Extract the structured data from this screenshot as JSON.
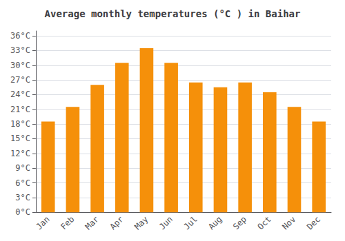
{
  "chart_data": {
    "type": "bar",
    "title": "Average monthly temperatures (°C ) in Baihar",
    "categories": [
      "Jan",
      "Feb",
      "Mar",
      "Apr",
      "May",
      "Jun",
      "Jul",
      "Aug",
      "Sep",
      "Oct",
      "Nov",
      "Dec"
    ],
    "values": [
      18.5,
      21.5,
      26.0,
      30.5,
      33.5,
      30.5,
      26.5,
      25.5,
      26.5,
      24.5,
      21.5,
      18.5
    ],
    "color": "#F5900A",
    "ylim": [
      0,
      37
    ],
    "yticks": [
      {
        "value": 0,
        "label": "0°C"
      },
      {
        "value": 3,
        "label": "3°C"
      },
      {
        "value": 6,
        "label": "6°C"
      },
      {
        "value": 9,
        "label": "9°C"
      },
      {
        "value": 12,
        "label": "12°C"
      },
      {
        "value": 15,
        "label": "15°C"
      },
      {
        "value": 18,
        "label": "18°C"
      },
      {
        "value": 21,
        "label": "21°C"
      },
      {
        "value": 24,
        "label": "24°C"
      },
      {
        "value": 27,
        "label": "27°C"
      },
      {
        "value": 30,
        "label": "30°C"
      },
      {
        "value": 33,
        "label": "33°C"
      },
      {
        "value": 36,
        "label": "36°C"
      }
    ],
    "grid": true
  }
}
